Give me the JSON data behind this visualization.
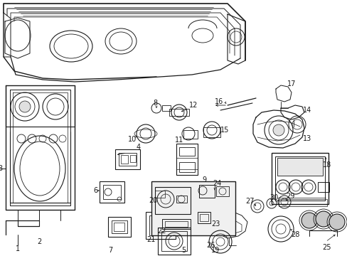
{
  "bg_color": "#ffffff",
  "line_color": "#1a1a1a",
  "fig_width": 4.89,
  "fig_height": 3.6,
  "dpi": 100,
  "label_fs": 7.0,
  "lw_main": 0.8,
  "lw_thin": 0.5,
  "lw_thick": 1.1
}
